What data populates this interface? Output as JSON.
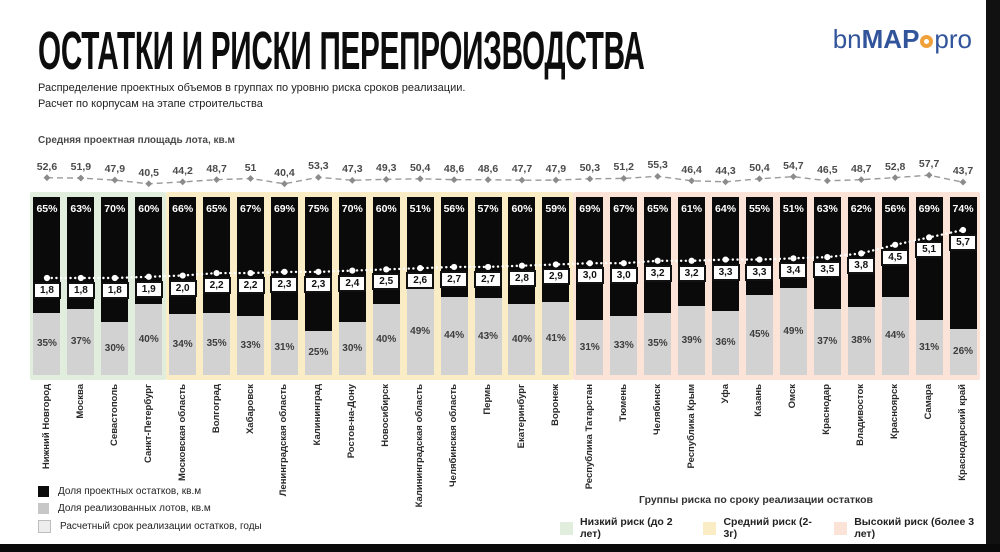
{
  "header": {
    "title": "ОСТАТКИ И РИСКИ ПЕРЕПРОИЗВОДСТВА",
    "subtitle1": "Распределение проектных объемов в группах по уровню риска сроков реализации.",
    "subtitle2": "Расчет по корпусам на этапе строительства"
  },
  "logo": {
    "bn": "bn",
    "map": "MAP",
    "pro": "pro",
    "text_color": "#31549b",
    "dot_color": "#f0a13a"
  },
  "chart_data": {
    "type": "bar",
    "subtype": "stacked-percent-with-lines",
    "top_axis_label": "Средняя проектная площадь лота, кв.м",
    "categories": [
      "Нижний Новгород",
      "Москва",
      "Севастополь",
      "Санкт-Петербург",
      "Московская область",
      "Волгоград",
      "Хабаровск",
      "Ленинградская область",
      "Калининград",
      "Ростов-на-Дону",
      "Новосибирск",
      "Калининградская область",
      "Челябинская область",
      "Пермь",
      "Екатеринбург",
      "Воронеж",
      "Республика Татарстан",
      "Тюмень",
      "Челябинск",
      "Республика Крым",
      "Уфа",
      "Казань",
      "Омск",
      "Краснодар",
      "Владивосток",
      "Красноярск",
      "Самара",
      "Краснодарский край"
    ],
    "series": [
      {
        "name": "Средняя проектная площадь лота, кв.м",
        "type": "line-dashed",
        "values": [
          52.6,
          51.9,
          47.9,
          40.5,
          44.2,
          48.7,
          51,
          40.4,
          53.3,
          47.3,
          49.3,
          50.4,
          48.6,
          48.6,
          47.7,
          47.9,
          50.3,
          51.2,
          55.3,
          46.4,
          44.3,
          50.4,
          54.7,
          46.5,
          48.7,
          52.8,
          57.7,
          43.7
        ]
      },
      {
        "name": "Доля проектных остатков, кв.м",
        "type": "bar-percent",
        "color": "#0a0a0a",
        "values": [
          65,
          63,
          70,
          60,
          66,
          65,
          67,
          69,
          75,
          70,
          60,
          51,
          56,
          57,
          60,
          59,
          69,
          67,
          65,
          61,
          64,
          55,
          51,
          63,
          62,
          56,
          69,
          74
        ]
      },
      {
        "name": "Доля реализованных лотов, кв.м",
        "type": "bar-percent",
        "color": "#d2d2d2",
        "values": [
          35,
          37,
          30,
          40,
          34,
          35,
          33,
          31,
          25,
          30,
          40,
          49,
          44,
          43,
          40,
          41,
          31,
          33,
          35,
          39,
          36,
          45,
          49,
          37,
          38,
          44,
          31,
          26
        ]
      },
      {
        "name": "Расчетный срок реализации остатков, годы",
        "type": "line-dotted-boxed",
        "values": [
          1.8,
          1.8,
          1.8,
          1.9,
          2.0,
          2.2,
          2.2,
          2.3,
          2.3,
          2.4,
          2.5,
          2.6,
          2.7,
          2.7,
          2.8,
          2.9,
          3.0,
          3.0,
          3.2,
          3.2,
          3.3,
          3.3,
          3.4,
          3.5,
          3.8,
          4.5,
          5.1,
          5.7
        ]
      }
    ],
    "risk_groups": [
      {
        "label": "Низкий риск (до 2 лет)",
        "color": "#e1eedd",
        "start": 0,
        "end": 3
      },
      {
        "label": "Средний риск (2-3г)",
        "color": "#faecc5",
        "start": 4,
        "end": 15
      },
      {
        "label": "Высокий риск (более 3 лет)",
        "color": "#fbe3d7",
        "start": 16,
        "end": 27
      }
    ],
    "ylim_percent": [
      0,
      100
    ],
    "grid": false,
    "legend_position": "bottom"
  },
  "legend": {
    "items": [
      {
        "label": "Доля проектных остатков, кв.м",
        "swatch": "#0b0b0b",
        "bordered": false
      },
      {
        "label": "Доля реализованных лотов, кв.м",
        "swatch": "#c7c7c7",
        "bordered": false
      },
      {
        "label": "Расчетный срок реализации остатков, годы",
        "swatch": "#ededed",
        "bordered": true
      }
    ]
  },
  "risk_legend": {
    "title": "Группы риска по  сроку реализации остатков"
  }
}
